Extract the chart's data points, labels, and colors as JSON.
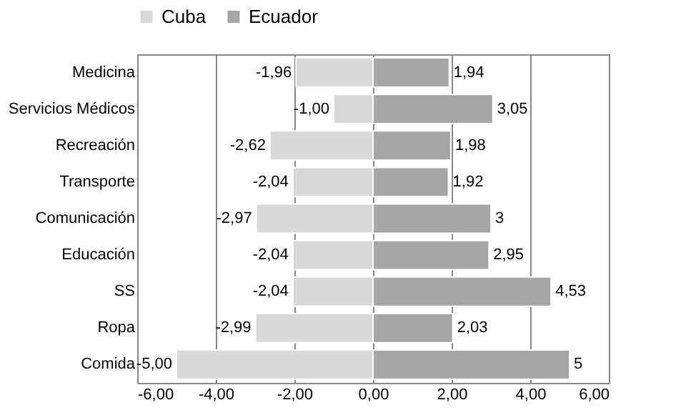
{
  "chart_data": {
    "type": "bar",
    "orientation": "horizontal",
    "stacked": true,
    "categories": [
      "Medicina",
      "Servicios Médicos",
      "Recreación",
      "Transporte",
      "Comunicación",
      "Educación",
      "SS",
      "Ropa",
      "Comida"
    ],
    "series": [
      {
        "name": "Cuba",
        "color": "#d9d9d9",
        "values": [
          -1.96,
          -1.0,
          -2.62,
          -2.04,
          -2.97,
          -2.04,
          -2.04,
          -2.99,
          -5.0
        ],
        "value_labels": [
          "-1,96",
          "-1,00",
          "-2,62",
          "-2,04",
          "-2,97",
          "-2,04",
          "-2,04",
          "-2,99",
          "-5,00"
        ]
      },
      {
        "name": "Ecuador",
        "color": "#a6a6a6",
        "values": [
          1.94,
          3.05,
          1.98,
          1.92,
          3,
          2.95,
          4.53,
          2.03,
          5
        ],
        "value_labels": [
          "1,94",
          "3,05",
          "1,98",
          "1,92",
          "3",
          "2,95",
          "4,53",
          "2,03",
          "5"
        ]
      }
    ],
    "xlim": [
      -6,
      6
    ],
    "xticks": [
      {
        "value": -6,
        "label": "-6,00"
      },
      {
        "value": -4,
        "label": "-4,00"
      },
      {
        "value": -2,
        "label": "-2,00"
      },
      {
        "value": 0,
        "label": "0,00"
      },
      {
        "value": 2,
        "label": "2,00"
      },
      {
        "value": 4,
        "label": "4,00"
      },
      {
        "value": 6,
        "label": "6,00"
      }
    ],
    "grid": "x",
    "legend": "top"
  }
}
